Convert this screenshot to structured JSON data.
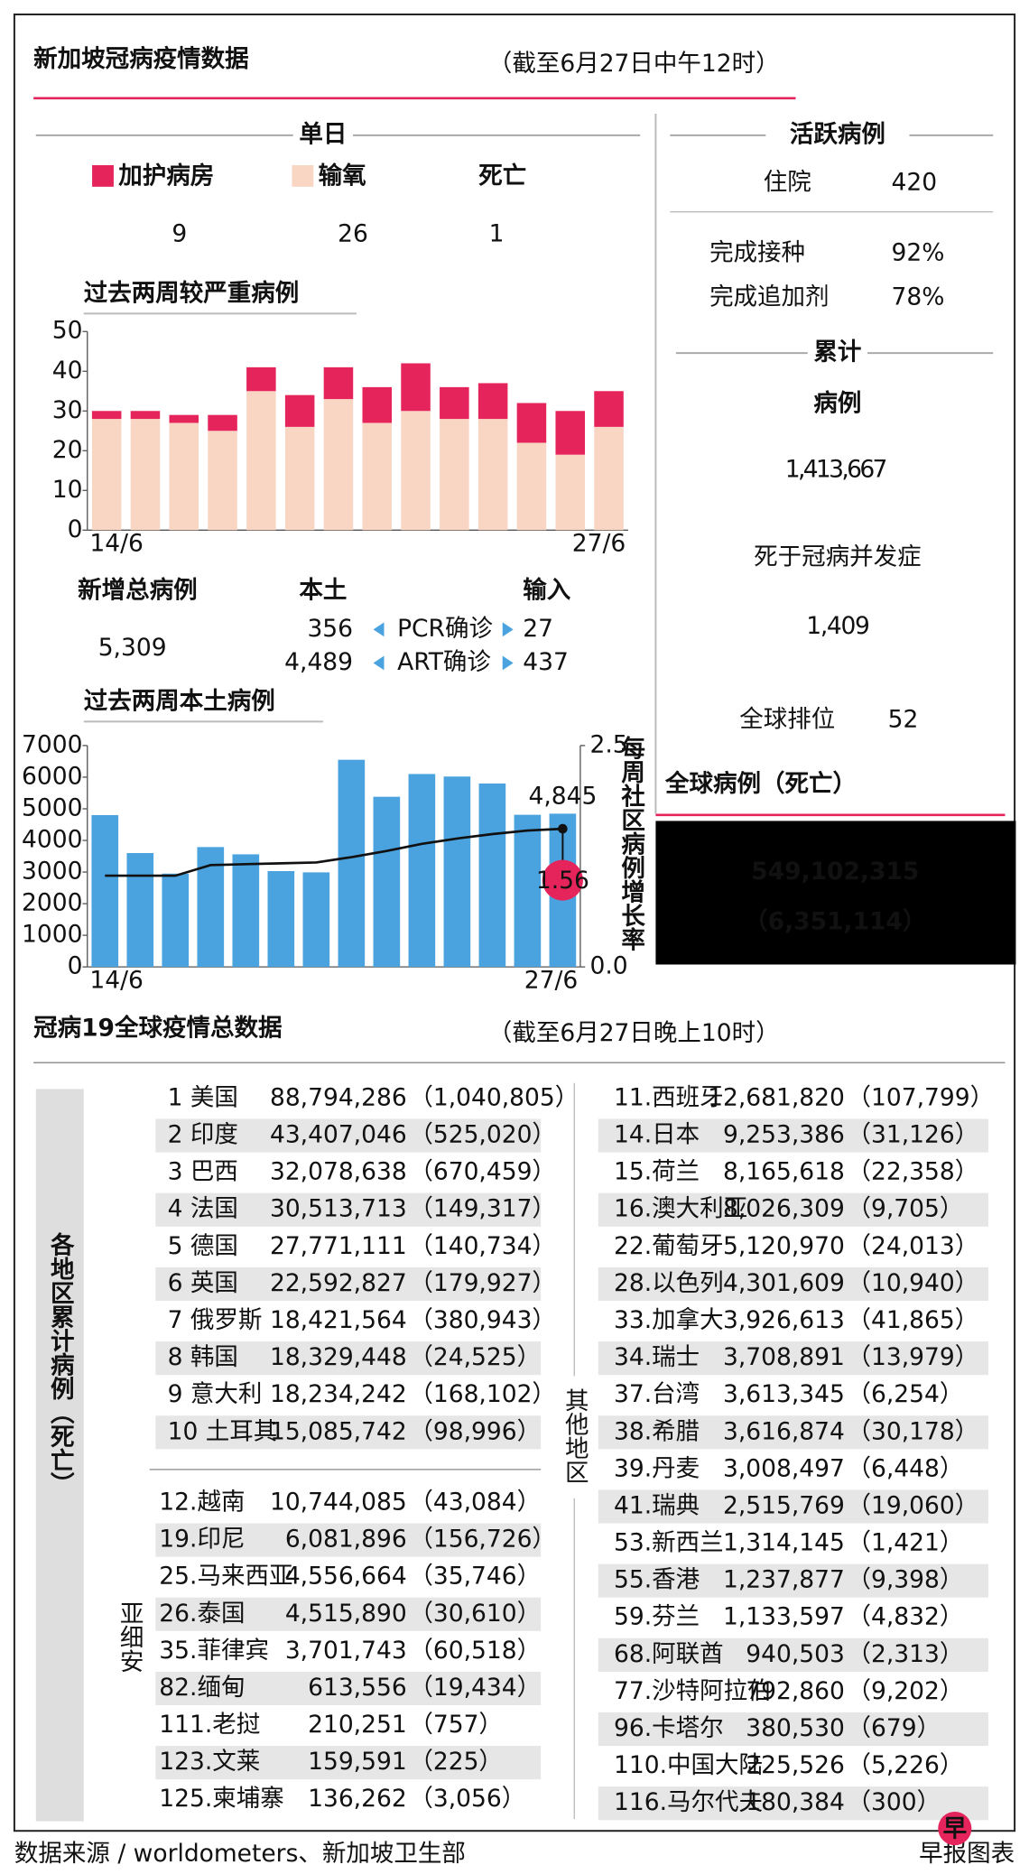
{
  "header": {
    "title": "新加坡冠病疫情数据",
    "note": "（截至6月27日中午12时）"
  },
  "single_day": {
    "heading": "单日",
    "icu": 9,
    "oxygen": 26,
    "deaths_label": "死亡",
    "deaths": 1
  },
  "chart_data": [
    {
      "type": "bar",
      "stacked": true,
      "title": "过去两周较严重病例",
      "categories": [
        "14/6",
        null,
        null,
        null,
        null,
        null,
        null,
        null,
        null,
        null,
        null,
        null,
        null,
        "27/6"
      ],
      "series": [
        {
          "name": "输氧",
          "color": "#f9d6c3",
          "values": [
            28,
            28,
            27,
            25,
            35,
            26,
            33,
            27,
            30,
            28,
            28,
            22,
            19,
            26
          ]
        },
        {
          "name": "加护病房",
          "color": "#e5245c",
          "values": [
            2,
            2,
            2,
            4,
            6,
            8,
            8,
            9,
            12,
            8,
            9,
            10,
            11,
            9
          ]
        }
      ],
      "ylim": [
        0,
        50
      ],
      "yticks": [
        0,
        10,
        20,
        30,
        40,
        50
      ]
    },
    {
      "type": "combo",
      "title": "过去两周本土病例",
      "categories": [
        "14/6",
        null,
        null,
        null,
        null,
        null,
        null,
        null,
        null,
        null,
        null,
        null,
        null,
        "27/6"
      ],
      "series": [
        {
          "color": "#4aa3df",
          "values": [
            4800,
            3600,
            2950,
            3790,
            3560,
            3030,
            2990,
            6550,
            5380,
            6100,
            6020,
            5800,
            4810,
            4845
          ],
          "value_labels": [
            null,
            null,
            null,
            null,
            null,
            null,
            null,
            null,
            null,
            null,
            null,
            null,
            null,
            "4,845"
          ]
        },
        {
          "color": "#111111",
          "axis": "y2",
          "values": [
            1.03,
            1.03,
            1.03,
            1.15,
            1.16,
            1.17,
            1.18,
            1.24,
            1.31,
            1.39,
            1.45,
            1.5,
            1.54,
            1.56
          ]
        }
      ],
      "ylim": [
        0,
        7000
      ],
      "yticks": [
        0,
        1000,
        2000,
        3000,
        4000,
        5000,
        6000,
        7000
      ],
      "y2lim": [
        0,
        2.5
      ],
      "y2ticks": [
        {
          "value": 0,
          "label": "0.0"
        },
        2.5
      ],
      "y2label": "每周社区病例增长率",
      "y2color": "#e5245c"
    }
  ],
  "new_cases": {
    "label": "新增总病例",
    "total": "5,309",
    "local_label": "本土",
    "imported_label": "输入",
    "rows": [
      {
        "local": 356,
        "method": "PCR确诊",
        "imported": 27
      },
      {
        "local": "4,489",
        "method": "ART确诊",
        "imported": 437
      }
    ]
  },
  "active": {
    "heading": "活跃病例",
    "hospital_label": "住院",
    "hospital": 420,
    "vaccinated_label": "完成接种",
    "vaccinated": "92%",
    "booster_label": "完成追加剂",
    "booster": "78%"
  },
  "cumulative": {
    "heading": "累计",
    "cases_label": "病例",
    "cases": "1,413,667",
    "deaths_label": "死于冠病并发症",
    "deaths": "1,409",
    "rank_label": "全球排位",
    "rank": 52
  },
  "global": {
    "title": "全球病例（死亡）",
    "cases": "549,102,315",
    "deaths": "（6,351,114）"
  },
  "world": {
    "title": "冠病19全球疫情总数据",
    "note": "（截至6月27日晚上10时）",
    "side_label": "各地区累计病例（死亡）",
    "top": [
      [
        "1 美国",
        "88,794,286",
        "（1,040,805）"
      ],
      [
        "2 印度",
        "43,407,046",
        "（525,020）"
      ],
      [
        "3 巴西",
        "32,078,638",
        "（670,459）"
      ],
      [
        "4 法国",
        "30,513,713",
        "（149,317）"
      ],
      [
        "5 德国",
        "27,771,111",
        "（140,734）"
      ],
      [
        "6 英国",
        "22,592,827",
        "（179,927）"
      ],
      [
        "7 俄罗斯",
        "18,421,564",
        "（380,943）"
      ],
      [
        "8 韩国",
        "18,329,448",
        "（24,525）"
      ],
      [
        "9 意大利",
        "18,234,242",
        "（168,102）"
      ],
      [
        "10 土耳其",
        "15,085,742",
        "（98,996）"
      ]
    ],
    "asean_label": "亚细安",
    "asean": [
      [
        "12.越南",
        "10,744,085",
        "（43,084）"
      ],
      [
        "19.印尼",
        "6,081,896",
        "（156,726）"
      ],
      [
        "25.马来西亚",
        "4,556,664",
        "（35,746）"
      ],
      [
        "26.泰国",
        "4,515,890",
        "（30,610）"
      ],
      [
        "35.菲律宾",
        "3,701,743",
        "（60,518）"
      ],
      [
        "82.缅甸",
        "613,556",
        "（19,434）"
      ],
      [
        "111.老挝",
        "210,251",
        "（757）"
      ],
      [
        "123.文莱",
        "159,591",
        "（225）"
      ],
      [
        "125.柬埔寨",
        "136,262",
        "（3,056）"
      ]
    ],
    "others_label": "其他地区",
    "others": [
      [
        "11.西班牙",
        "12,681,820",
        "（107,799）"
      ],
      [
        "14.日本",
        "9,253,386",
        "（31,126）"
      ],
      [
        "15.荷兰",
        "8,165,618",
        "（22,358）"
      ],
      [
        "16.澳大利亚",
        "8,026,309",
        "（9,705）"
      ],
      [
        "22.葡萄牙",
        "5,120,970",
        "（24,013）"
      ],
      [
        "28.以色列",
        "4,301,609",
        "（10,940）"
      ],
      [
        "33.加拿大",
        "3,926,613",
        "（41,865）"
      ],
      [
        "34.瑞士",
        "3,708,891",
        "（13,979）"
      ],
      [
        "37.台湾",
        "3,613,345",
        "（6,254）"
      ],
      [
        "38.希腊",
        "3,616,874",
        "（30,178）"
      ],
      [
        "39.丹麦",
        "3,008,497",
        "（6,448）"
      ],
      [
        "41.瑞典",
        "2,515,769",
        "（19,060）"
      ],
      [
        "53.新西兰",
        "1,314,145",
        "（1,421）"
      ],
      [
        "55.香港",
        "1,237,877",
        "（9,398）"
      ],
      [
        "59.芬兰",
        "1,133,597",
        "（4,832）"
      ],
      [
        "68.阿联酋",
        "940,503",
        "（2,313）"
      ],
      [
        "77.沙特阿拉伯",
        "792,860",
        "（9,202）"
      ],
      [
        "96.卡塔尔",
        "380,530",
        "（679）"
      ],
      [
        "110.中国大陆",
        "225,526",
        "（5,226）"
      ],
      [
        "116.马尔代夫",
        "180,384",
        "（300）"
      ]
    ]
  },
  "footer": {
    "source": "数据来源 / worldometers、新加坡卫生部",
    "credit": "早报图表",
    "logo": "早"
  }
}
